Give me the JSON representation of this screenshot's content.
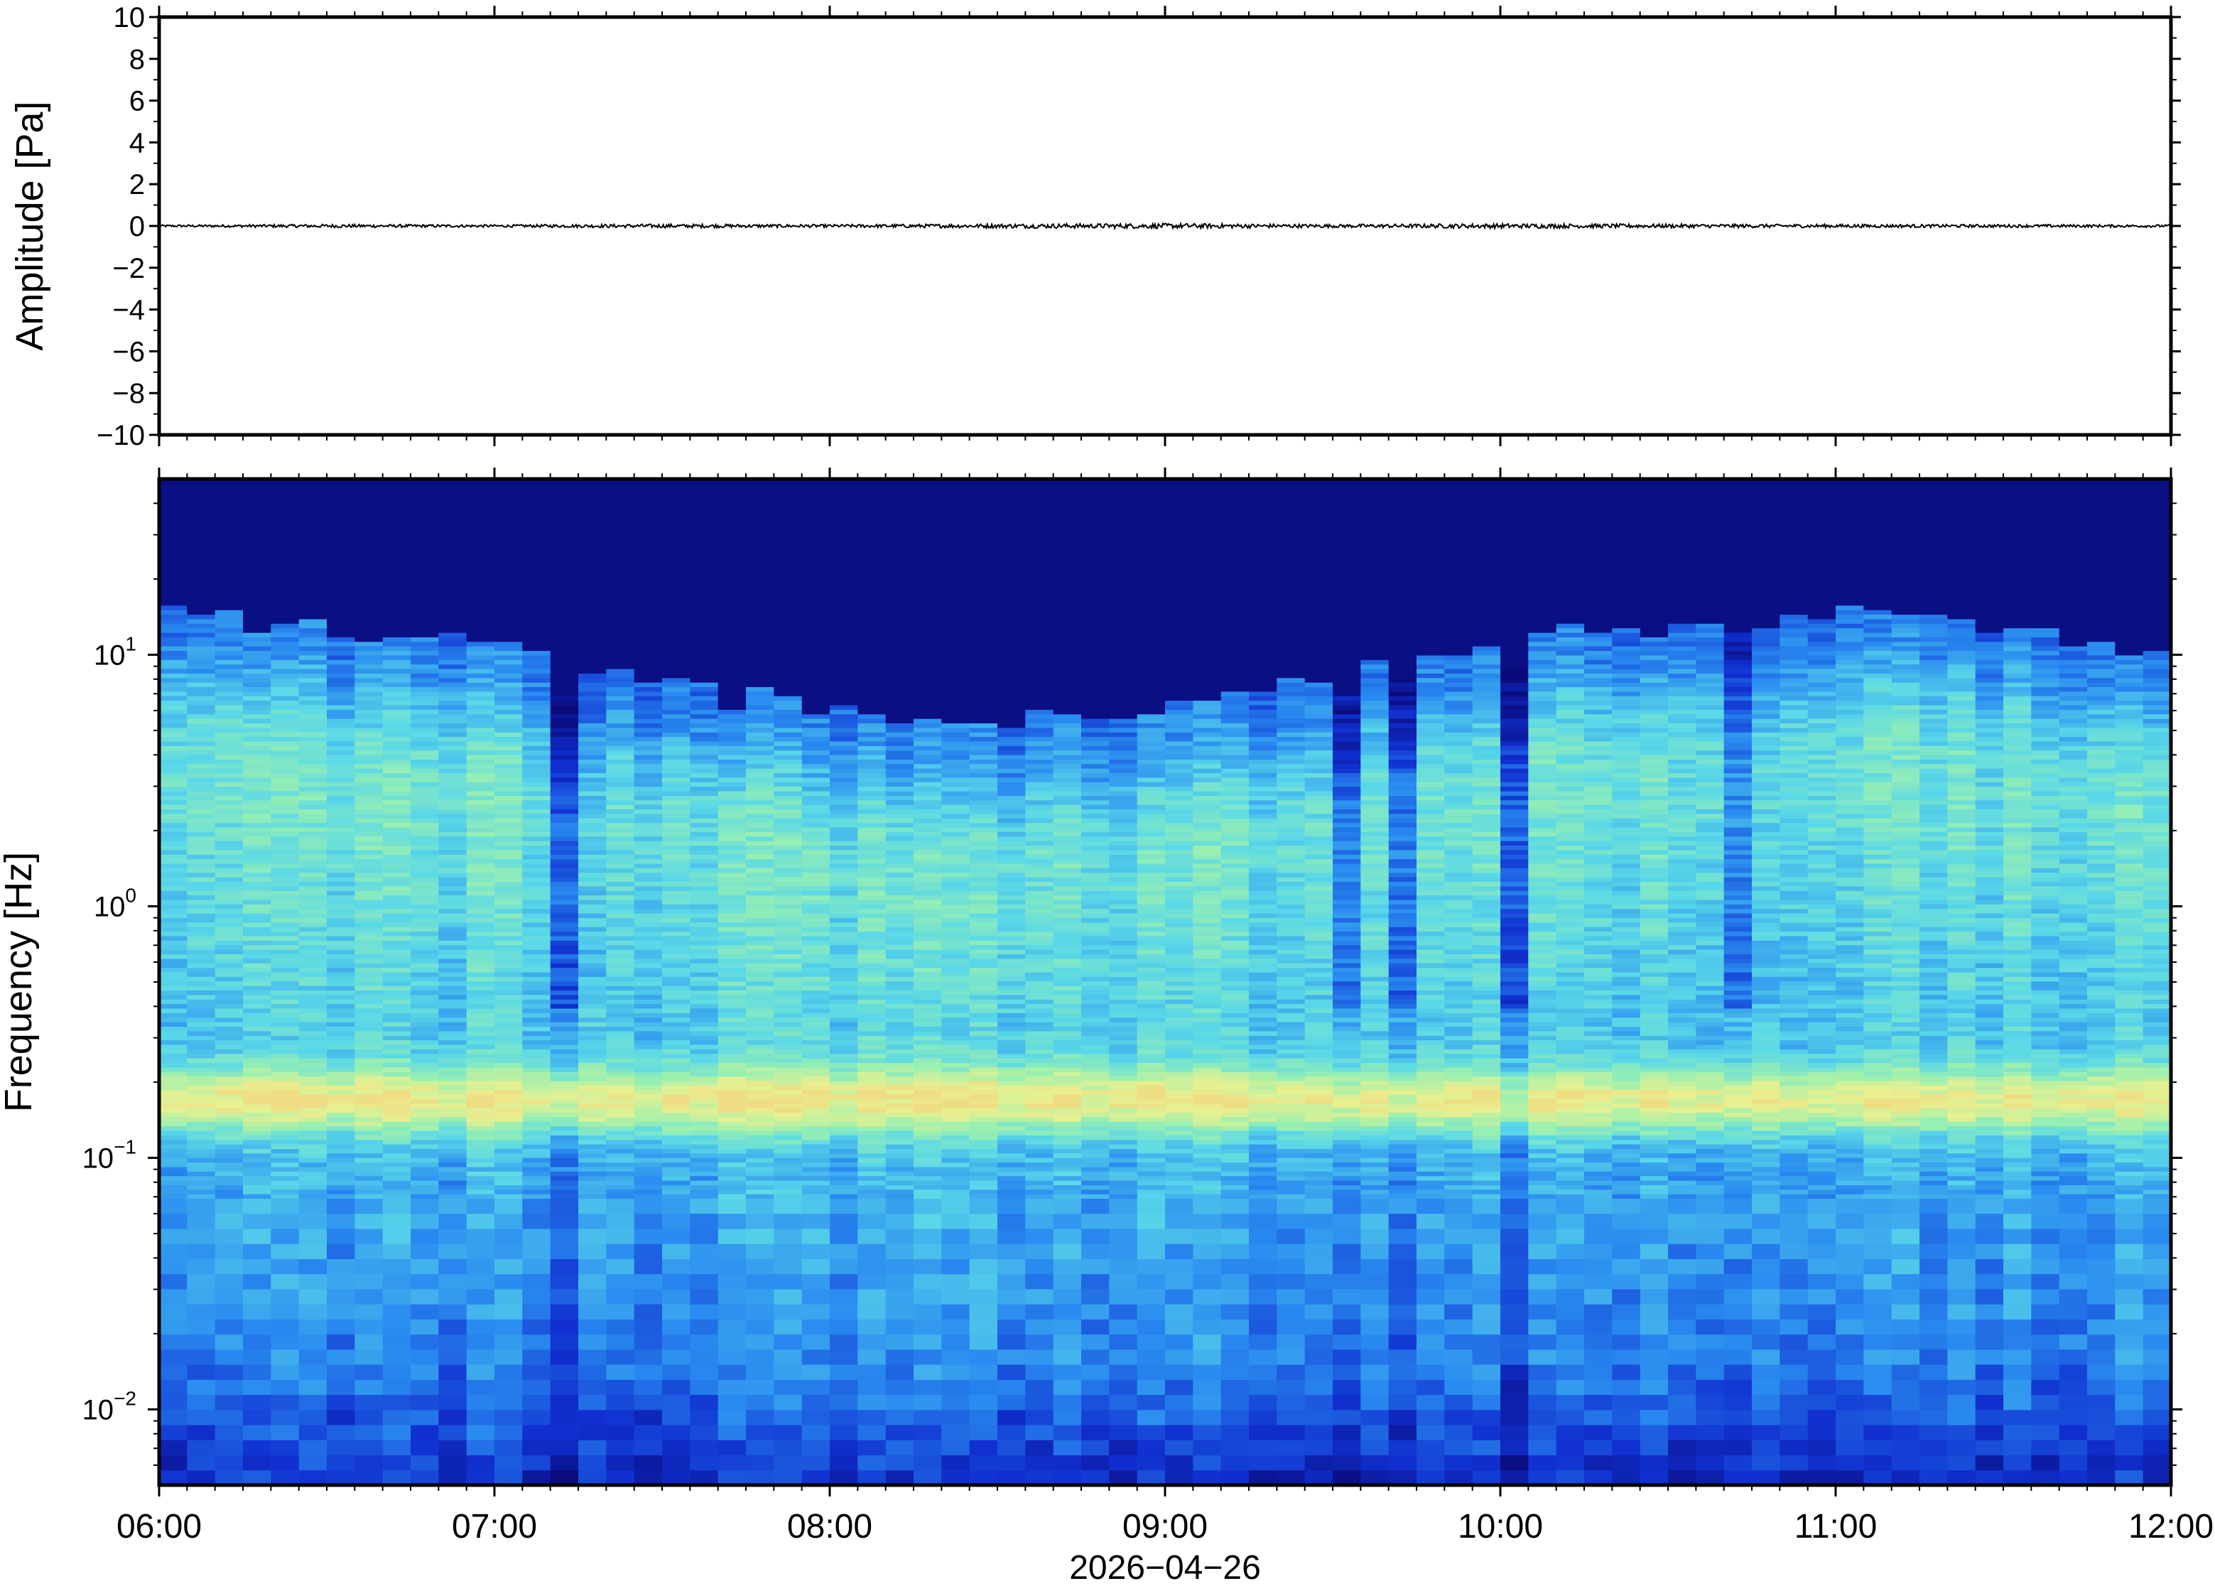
{
  "chart_data": [
    {
      "type": "line",
      "panel": "waveform",
      "ylabel": "Amplitude [Pa]",
      "ylim": [
        -10,
        10
      ],
      "yticks": [
        "10",
        "8",
        "6",
        "4",
        "2",
        "0",
        "−2",
        "−4",
        "−6",
        "−8",
        "−10"
      ],
      "ytick_values": [
        10,
        8,
        6,
        4,
        2,
        0,
        -2,
        -4,
        -6,
        -8,
        -10
      ],
      "xlim_hours": [
        6,
        12
      ],
      "series": [
        {
          "x_hours": [
            6.0,
            6.5,
            7.0,
            7.5,
            8.0,
            8.5,
            9.0,
            9.5,
            10.0,
            10.5,
            11.0,
            11.5,
            12.0
          ],
          "values": [
            0.05,
            0.08,
            0.06,
            0.09,
            0.07,
            0.1,
            0.12,
            0.08,
            0.11,
            0.09,
            0.08,
            0.07,
            0.06
          ],
          "envelope": true
        }
      ],
      "color": "#000000",
      "grid": false
    },
    {
      "type": "heatmap",
      "panel": "spectrogram",
      "ylabel": "Frequency [Hz]",
      "yscale": "log",
      "ylim": [
        0.005,
        50
      ],
      "yticks": [
        {
          "base": "10",
          "exp": "1",
          "value": 10
        },
        {
          "base": "10",
          "exp": "0",
          "value": 1
        },
        {
          "base": "10",
          "exp": "−1",
          "value": 0.1
        },
        {
          "base": "10",
          "exp": "−2",
          "value": 0.01
        }
      ],
      "xticks": [
        "06:00",
        "07:00",
        "08:00",
        "09:00",
        "10:00",
        "11:00",
        "12:00"
      ],
      "xtick_hours": [
        6,
        7,
        8,
        9,
        10,
        11,
        12
      ],
      "xlabel": "2026−04−26",
      "colormap": [
        "#0a0a7a",
        "#1030d0",
        "#2a8cf0",
        "#5ad8e8",
        "#9af0b0",
        "#e8f090",
        "#f8c070"
      ],
      "dominant_band_hz": 0.17,
      "quiet_columns_hours": [
        7.2,
        7.25,
        9.55,
        9.7,
        10.05,
        10.7,
        10.75
      ],
      "grid": false
    }
  ]
}
